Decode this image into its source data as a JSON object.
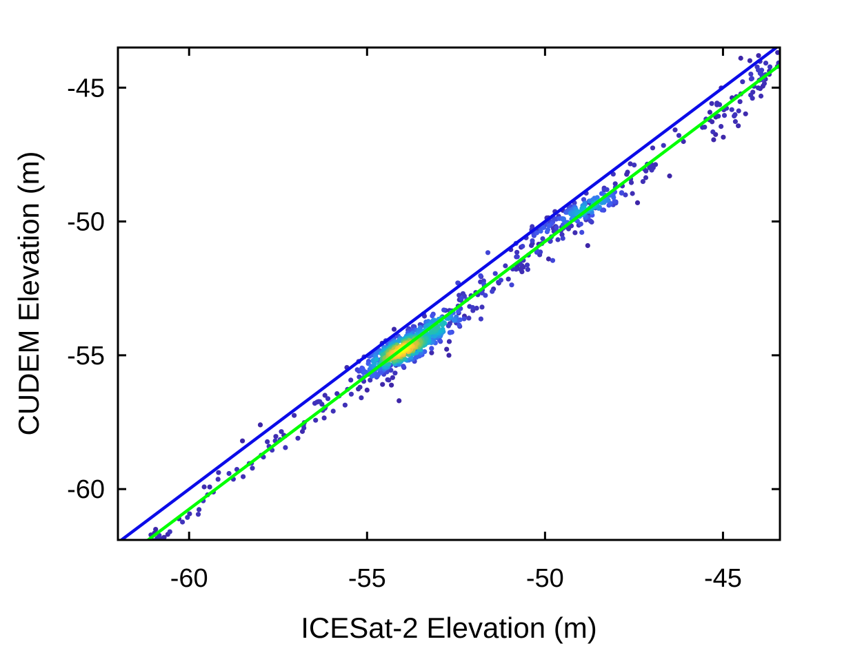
{
  "chart_data": {
    "type": "scatter",
    "title": "",
    "xlabel": "ICESat-2 Elevation (m)",
    "ylabel": "CUDEM Elevation (m)",
    "xlim": [
      -62.0,
      -43.4
    ],
    "ylim": [
      -61.9,
      -43.5
    ],
    "xticks": [
      {
        "value": -60,
        "label": "-60"
      },
      {
        "value": -55,
        "label": "-55"
      },
      {
        "value": -50,
        "label": "-50"
      },
      {
        "value": -45,
        "label": "-45"
      }
    ],
    "yticks": [
      {
        "value": -45,
        "label": "-45"
      },
      {
        "value": -50,
        "label": "-50"
      },
      {
        "value": -55,
        "label": "-55"
      },
      {
        "value": -60,
        "label": "-60"
      }
    ],
    "grid": false,
    "legend": "none",
    "color_scale": "density (parula)",
    "reference_lines": [
      {
        "kind": "1:1 line",
        "color": "#0b0be8",
        "slope": 1.0,
        "intercept": 0.0
      },
      {
        "kind": "fit line",
        "color": "#00ff00",
        "slope": 1.0,
        "intercept": -0.75
      }
    ],
    "clusters": [
      {
        "center": [
          -61.0,
          -61.8
        ],
        "spread": [
          0.35,
          0.15
        ],
        "count": 18,
        "density": 0.02
      },
      {
        "center": [
          -54.0,
          -54.8
        ],
        "spread": [
          0.55,
          0.28
        ],
        "count": 380,
        "density": 1.0
      },
      {
        "center": [
          -53.1,
          -54.0
        ],
        "spread": [
          0.45,
          0.3
        ],
        "count": 120,
        "density": 0.55
      },
      {
        "center": [
          -54.8,
          -55.5
        ],
        "spread": [
          0.35,
          0.35
        ],
        "count": 40,
        "density": 0.25
      },
      {
        "center": [
          -48.8,
          -49.5
        ],
        "spread": [
          0.55,
          0.22
        ],
        "count": 130,
        "density": 0.45
      },
      {
        "center": [
          -50.0,
          -50.3
        ],
        "spread": [
          0.3,
          0.2
        ],
        "count": 25,
        "density": 0.2
      },
      {
        "center": [
          -44.8,
          -46.0
        ],
        "spread": [
          0.3,
          0.35
        ],
        "count": 20,
        "density": 0.05
      },
      {
        "center": [
          -44.0,
          -44.5
        ],
        "spread": [
          0.35,
          0.3
        ],
        "count": 25,
        "density": 0.08
      }
    ],
    "scatter_line": [
      {
        "x_range": [
          -61.3,
          -43.5
        ],
        "offset": -0.75,
        "noise": 0.28,
        "count": 170,
        "density": 0.03
      },
      {
        "x_range": [
          -52.5,
          -48.5
        ],
        "offset": -0.75,
        "noise": 0.45,
        "count": 60,
        "density": 0.08
      }
    ],
    "points": [
      {
        "x": -58.5,
        "y": -58.2
      },
      {
        "x": -58.0,
        "y": -57.6
      },
      {
        "x": -55.0,
        "y": -56.3
      },
      {
        "x": -54.1,
        "y": -56.7
      },
      {
        "x": -52.7,
        "y": -55.0
      },
      {
        "x": -51.7,
        "y": -52.4
      },
      {
        "x": -51.3,
        "y": -52.3
      },
      {
        "x": -49.9,
        "y": -51.4
      },
      {
        "x": -48.8,
        "y": -50.9
      },
      {
        "x": -47.4,
        "y": -49.3
      },
      {
        "x": -46.5,
        "y": -48.3
      },
      {
        "x": -45.2,
        "y": -46.1
      },
      {
        "x": -44.5,
        "y": -43.9
      },
      {
        "x": -43.7,
        "y": -44.5
      },
      {
        "x": -44.0,
        "y": -43.8
      }
    ]
  }
}
